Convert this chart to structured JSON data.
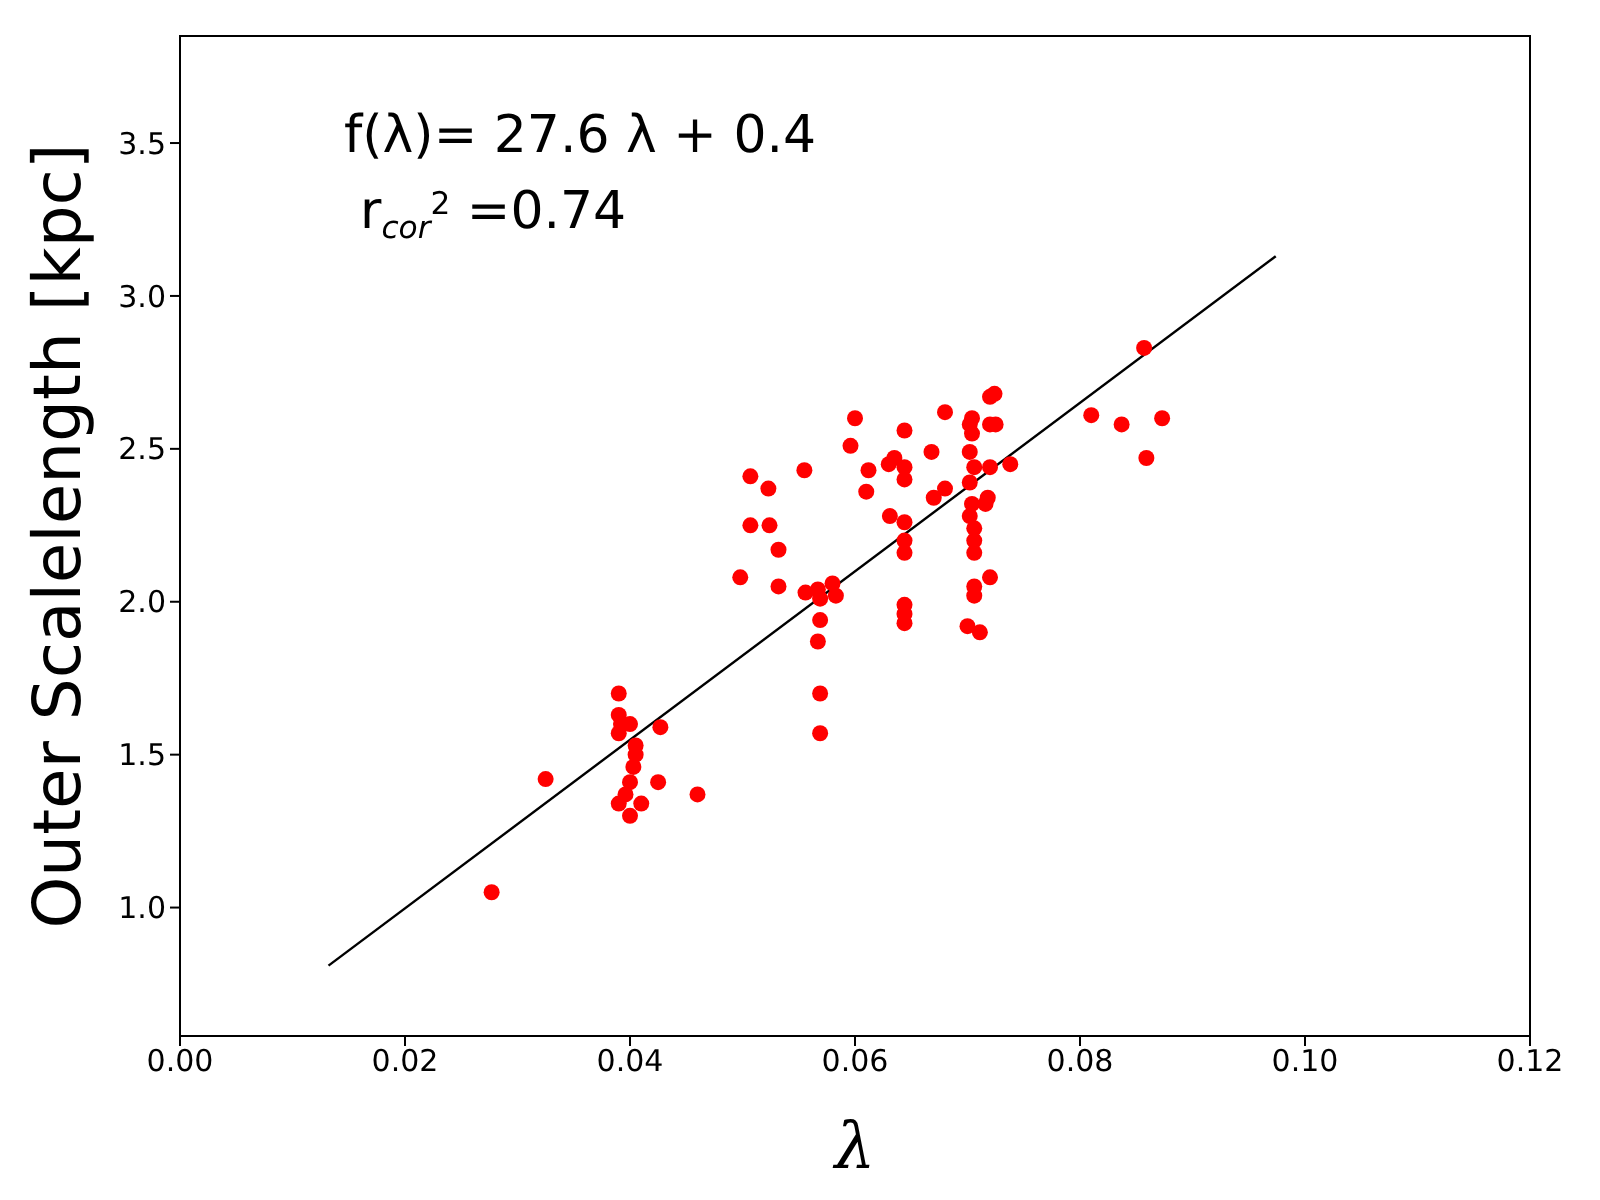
{
  "chart_data": {
    "type": "scatter",
    "xlabel": "λ",
    "ylabel": "Outer Scalelength [kpc]",
    "annotations": [
      "f(λ)= 27.6 λ + 0.4",
      "r$_{cor}$$^{2}$ =0.74"
    ],
    "xlim": [
      0,
      0.12
    ],
    "xticks": [
      {
        "value": 0,
        "label": "0.00"
      },
      {
        "value": 0.02,
        "label": "0.02"
      },
      {
        "value": 0.04,
        "label": "0.04"
      },
      {
        "value": 0.06,
        "label": "0.06"
      },
      {
        "value": 0.08,
        "label": "0.08"
      },
      {
        "value": 0.1,
        "label": "0.10"
      },
      {
        "value": 0.12,
        "label": "0.12"
      }
    ],
    "ylim": [
      0.58,
      3.85
    ],
    "yticks": [
      {
        "value": 1,
        "label": "1.0"
      },
      {
        "value": 1.5,
        "label": "1.5"
      },
      {
        "value": 2,
        "label": "2.0"
      },
      {
        "value": 2.5,
        "label": "2.5"
      },
      {
        "value": 3,
        "label": "3.0"
      },
      {
        "value": 3.5,
        "label": "3.5"
      }
    ],
    "marker": "circle",
    "series": [
      {
        "type": "scatter",
        "color": "#ff0000",
        "x": [
          0.0277,
          0.0325,
          0.039,
          0.039,
          0.0392,
          0.04,
          0.039,
          0.0405,
          0.0405,
          0.0403,
          0.0427,
          0.04,
          0.0425,
          0.039,
          0.0396,
          0.041,
          0.04,
          0.046,
          0.0498,
          0.0507,
          0.0507,
          0.0523,
          0.0524,
          0.0532,
          0.0532,
          0.0555,
          0.0556,
          0.0567,
          0.0569,
          0.0569,
          0.0567,
          0.0569,
          0.0569,
          0.058,
          0.0583,
          0.06,
          0.0596,
          0.061,
          0.0612,
          0.063,
          0.0631,
          0.0635,
          0.0644,
          0.0644,
          0.0644,
          0.0644,
          0.0644,
          0.0644,
          0.0644,
          0.0644,
          0.0644,
          0.0668,
          0.067,
          0.068,
          0.068,
          0.07,
          0.0702,
          0.0702,
          0.0702,
          0.0704,
          0.0706,
          0.0706,
          0.0706,
          0.0706,
          0.0706,
          0.0706,
          0.0702,
          0.0704,
          0.0704,
          0.0711,
          0.072,
          0.072,
          0.072,
          0.0724,
          0.0716,
          0.0718,
          0.072,
          0.0725,
          0.0738,
          0.081,
          0.0837,
          0.0857,
          0.0859,
          0.0873
        ],
        "values": [
          1.05,
          1.42,
          1.7,
          1.63,
          1.6,
          1.6,
          1.57,
          1.53,
          1.5,
          1.46,
          1.59,
          1.41,
          1.41,
          1.34,
          1.37,
          1.34,
          1.3,
          1.37,
          2.08,
          2.25,
          2.41,
          2.37,
          2.25,
          2.17,
          2.05,
          2.43,
          2.03,
          2.04,
          2.01,
          1.94,
          1.87,
          1.7,
          1.57,
          2.06,
          2.02,
          2.6,
          2.51,
          2.36,
          2.43,
          2.45,
          2.28,
          2.47,
          2.44,
          2.56,
          2.4,
          2.26,
          2.2,
          2.16,
          1.99,
          1.96,
          1.93,
          2.49,
          2.34,
          2.62,
          2.37,
          1.92,
          2.39,
          2.58,
          2.49,
          2.55,
          2.44,
          2.24,
          2.2,
          2.16,
          2.05,
          2.02,
          2.28,
          2.32,
          2.6,
          1.9,
          2.44,
          2.58,
          2.67,
          2.68,
          2.32,
          2.34,
          2.08,
          2.58,
          2.45,
          2.61,
          2.58,
          2.83,
          2.47,
          2.6
        ]
      },
      {
        "type": "line",
        "color": "#000000",
        "marker": "none",
        "x": [
          0.0132,
          0.0974
        ],
        "values": [
          0.81,
          3.13
        ]
      }
    ]
  }
}
